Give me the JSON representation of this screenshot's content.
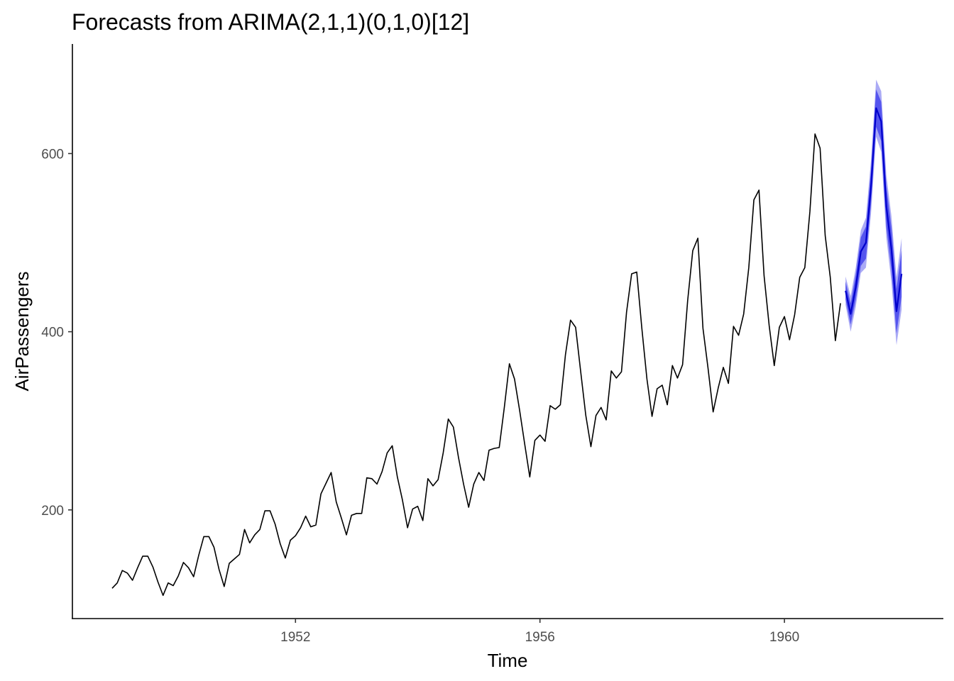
{
  "chart_data": {
    "type": "line",
    "title": "Forecasts from ARIMA(2,1,1)(0,1,0)[12]",
    "xlabel": "Time",
    "ylabel": "AirPassengers",
    "x_ticks": [
      1952,
      1956,
      1960
    ],
    "y_ticks": [
      200,
      400,
      600
    ],
    "xlim": [
      1948.35,
      1962.6
    ],
    "ylim": [
      78,
      723
    ],
    "grid": false,
    "legend": "none",
    "colors": {
      "history": "#000000",
      "forecast": "#0000cc",
      "ci80": "#5555ee",
      "ci95": "#aaaaf5"
    },
    "series": [
      {
        "role": "history",
        "x_start": 1949.0,
        "step": 0.0833333,
        "values": [
          112,
          118,
          132,
          129,
          121,
          135,
          148,
          148,
          136,
          119,
          104,
          118,
          115,
          126,
          141,
          135,
          125,
          149,
          170,
          170,
          158,
          133,
          114,
          140,
          145,
          150,
          178,
          163,
          172,
          178,
          199,
          199,
          184,
          162,
          146,
          166,
          171,
          180,
          193,
          181,
          183,
          218,
          230,
          242,
          209,
          191,
          172,
          194,
          196,
          196,
          236,
          235,
          229,
          243,
          264,
          272,
          237,
          211,
          180,
          201,
          204,
          188,
          235,
          227,
          234,
          264,
          302,
          293,
          259,
          229,
          203,
          229,
          242,
          233,
          267,
          269,
          270,
          315,
          364,
          347,
          312,
          274,
          237,
          278,
          284,
          277,
          317,
          313,
          318,
          374,
          413,
          405,
          355,
          306,
          271,
          306,
          315,
          301,
          356,
          348,
          355,
          422,
          465,
          467,
          404,
          347,
          305,
          336,
          340,
          318,
          362,
          348,
          363,
          435,
          491,
          505,
          404,
          359,
          310,
          337,
          360,
          342,
          406,
          396,
          420,
          472,
          548,
          559,
          463,
          407,
          362,
          405,
          417,
          391,
          419,
          461,
          472,
          535,
          622,
          606,
          508,
          461,
          390,
          432
        ]
      },
      {
        "role": "forecast",
        "x_start": 1961.0,
        "step": 0.0833333,
        "values": [
          446,
          420,
          450,
          490,
          500,
          563,
          651,
          636,
          541,
          493,
          423,
          465
        ],
        "lo80": [
          436,
          408,
          436,
          474,
          482,
          544,
          630,
          614,
          518,
          469,
          398,
          439
        ],
        "hi80": [
          456,
          432,
          464,
          506,
          518,
          582,
          672,
          658,
          564,
          517,
          448,
          491
        ],
        "lo95": [
          430,
          400,
          428,
          466,
          472,
          533,
          619,
          602,
          506,
          456,
          385,
          425
        ],
        "hi95": [
          462,
          440,
          472,
          514,
          528,
          593,
          683,
          670,
          576,
          530,
          461,
          505
        ]
      }
    ]
  }
}
